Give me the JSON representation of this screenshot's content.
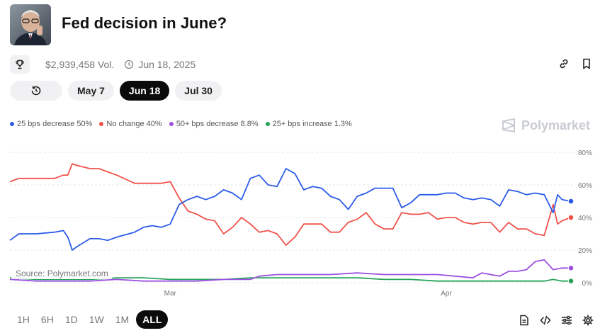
{
  "market": {
    "title": "Fed decision in June?",
    "avatar": "fed-chair-portrait",
    "volume": "$2,939,458 Vol.",
    "end_date": "Jun 18, 2025"
  },
  "icons": {
    "trophy": "trophy-icon",
    "clock": "clock-icon",
    "link": "link-icon",
    "bookmark": "bookmark-icon",
    "history": "history-icon",
    "brand": "polymarket-logo-icon",
    "document": "document-icon",
    "embed": "code-icon",
    "filters": "sliders-icon",
    "settings": "gear-icon"
  },
  "date_tabs": [
    {
      "label": "May 7",
      "active": false
    },
    {
      "label": "Jun 18",
      "active": true
    },
    {
      "label": "Jul 30",
      "active": false
    }
  ],
  "legend": [
    {
      "label": "25 bps decrease 50%",
      "color": "#2b5be8"
    },
    {
      "label": "No change 40%",
      "color": "#f0524a"
    },
    {
      "label": "50+ bps decrease 8.8%",
      "color": "#9b51e0"
    },
    {
      "label": "25+ bps increase 1.3%",
      "color": "#27a35a"
    }
  ],
  "brand_label": "Polymarket",
  "source_label": "Source: Polymarket.com",
  "time_ranges": [
    {
      "label": "1H",
      "active": false
    },
    {
      "label": "6H",
      "active": false
    },
    {
      "label": "1D",
      "active": false
    },
    {
      "label": "1W",
      "active": false
    },
    {
      "label": "1M",
      "active": false
    },
    {
      "label": "ALL",
      "active": true
    }
  ],
  "chart_data": {
    "type": "line",
    "x_start": "Feb 12",
    "x_end": "Apr 22",
    "x_ticks": [
      {
        "label": "Mar",
        "day": 18
      },
      {
        "label": "Apr",
        "day": 49
      }
    ],
    "y_ticks": [
      {
        "label": "80%",
        "value": 80
      },
      {
        "label": "60%",
        "value": 60
      },
      {
        "label": "40%",
        "value": 40
      },
      {
        "label": "20%",
        "value": 20
      },
      {
        "label": "0%",
        "value": 0
      }
    ],
    "ylim": [
      0,
      80
    ],
    "xlim": [
      0,
      63
    ],
    "grid": "horizontal-dashed",
    "series": [
      {
        "name": "25 bps decrease",
        "color": "#2b5be8",
        "x": [
          0,
          1,
          3,
          5,
          6,
          6.5,
          7,
          7.5,
          9,
          10,
          11,
          12,
          14,
          15,
          16,
          17,
          18,
          19,
          20,
          21,
          22,
          23,
          24,
          25,
          26,
          27,
          28,
          29,
          30,
          31,
          32,
          33,
          34,
          35,
          36,
          37,
          38,
          39,
          40,
          41,
          42,
          43,
          44,
          45,
          46,
          47,
          48,
          49,
          50,
          51,
          52,
          53,
          54,
          55,
          56,
          57,
          58,
          59,
          60,
          61,
          61.5,
          62,
          63
        ],
        "values": [
          26,
          30,
          30,
          31,
          32,
          28,
          20,
          22,
          27,
          27,
          26,
          28,
          31,
          34,
          35,
          34,
          36,
          48,
          51,
          53,
          51,
          53,
          57,
          55,
          51,
          64,
          66,
          60,
          59,
          70,
          67,
          57,
          59,
          58,
          53,
          51,
          45,
          53,
          55,
          58,
          58,
          58,
          46,
          49,
          54,
          54,
          54,
          55,
          55,
          52,
          51,
          52,
          51,
          47,
          57,
          56,
          54,
          55,
          54,
          43,
          54,
          51,
          50
        ]
      },
      {
        "name": "No change",
        "color": "#f0524a",
        "x": [
          0,
          1,
          3,
          5,
          6,
          6.5,
          7,
          7.5,
          9,
          10,
          11,
          12,
          14,
          15,
          16,
          17,
          18,
          19,
          20,
          21,
          22,
          23,
          24,
          25,
          26,
          27,
          28,
          29,
          30,
          31,
          32,
          33,
          34,
          35,
          36,
          37,
          38,
          39,
          40,
          41,
          42,
          43,
          44,
          45,
          46,
          47,
          48,
          49,
          50,
          51,
          52,
          53,
          54,
          55,
          56,
          57,
          58,
          59,
          60,
          61,
          61.5,
          62,
          63
        ],
        "values": [
          62,
          64,
          64,
          64,
          66,
          66,
          73,
          72,
          70,
          70,
          68,
          66,
          61,
          61,
          61,
          61,
          62,
          52,
          44,
          42,
          39,
          38,
          30,
          34,
          40,
          36,
          31,
          32,
          30,
          23,
          28,
          36,
          36,
          36,
          31,
          31,
          37,
          39,
          43,
          36,
          33,
          33,
          43,
          42,
          42,
          43,
          39,
          40,
          40,
          37,
          36,
          37,
          37,
          31,
          37,
          33,
          33,
          30,
          29,
          48,
          36,
          38,
          40
        ]
      },
      {
        "name": "50+ bps decrease",
        "color": "#9b51e0",
        "x": [
          0,
          3,
          6,
          9,
          12,
          15,
          18,
          21,
          24,
          27,
          28,
          30,
          33,
          36,
          39,
          42,
          45,
          48,
          50,
          52,
          53,
          55,
          56,
          57,
          58,
          59,
          60,
          61,
          62,
          63
        ],
        "values": [
          2,
          1,
          1,
          1,
          2,
          1,
          1,
          1,
          2,
          2,
          4,
          5,
          5,
          5,
          6,
          5,
          5,
          5,
          4,
          3,
          6,
          4,
          7,
          7,
          8,
          13,
          14,
          8,
          9,
          9
        ]
      },
      {
        "name": "25+ bps increase",
        "color": "#27a35a",
        "x": [
          0,
          3,
          6,
          9,
          12,
          15,
          18,
          21,
          24,
          27,
          30,
          33,
          36,
          39,
          42,
          45,
          48,
          51,
          54,
          57,
          60,
          61,
          62,
          63
        ],
        "values": [
          3,
          2,
          2,
          2,
          3,
          3,
          2,
          2,
          2,
          3,
          3,
          3,
          3,
          3,
          2,
          2,
          1,
          1,
          1,
          1,
          1,
          2,
          1,
          1
        ]
      }
    ]
  }
}
